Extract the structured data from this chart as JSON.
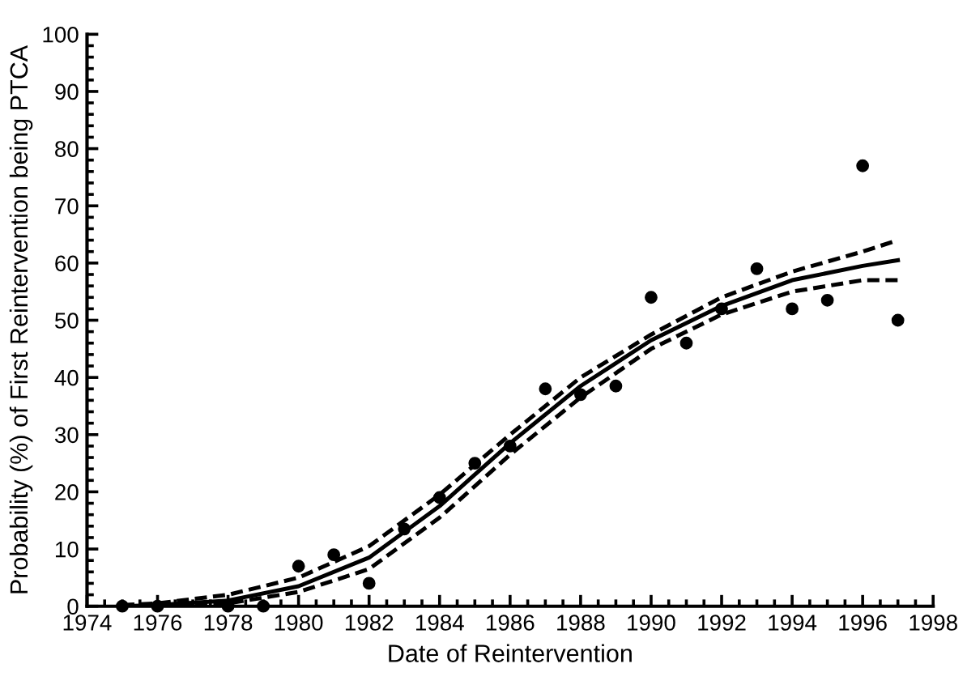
{
  "chart_data": {
    "type": "scatter",
    "xlabel": "Date of Reintervention",
    "ylabel": "Probability (%) of First Reintervention being PTCA",
    "xlim": [
      1974,
      1998
    ],
    "xticks": [
      1974,
      1976,
      1978,
      1980,
      1982,
      1984,
      1986,
      1988,
      1990,
      1992,
      1994,
      1996,
      1998
    ],
    "ylim": [
      0,
      100
    ],
    "yticks": [
      0,
      10,
      20,
      30,
      40,
      50,
      60,
      70,
      80,
      90,
      100
    ],
    "grid": false,
    "legend": false,
    "series": [
      {
        "color": "#000000",
        "marker": "circle",
        "x": [
          1975,
          1976,
          1978,
          1979,
          1980,
          1981,
          1982,
          1983,
          1984,
          1985,
          1986,
          1987,
          1988,
          1989,
          1990,
          1991,
          1992,
          1993,
          1994,
          1995,
          1996,
          1997
        ],
        "values": [
          0,
          0,
          0,
          0,
          7,
          9,
          4,
          13.5,
          19,
          25,
          28,
          38,
          37,
          38.5,
          54,
          46,
          52,
          59,
          52,
          53.5,
          77,
          50
        ]
      },
      {
        "type": "line",
        "color": "#000000",
        "line_style": "solid",
        "x": [
          1975,
          1976,
          1978,
          1980,
          1982,
          1984,
          1985,
          1986,
          1987,
          1988,
          1990,
          1992,
          1994,
          1996,
          1997
        ],
        "values": [
          0,
          0.2,
          1,
          3.5,
          8.5,
          17.5,
          23,
          28.5,
          33.5,
          38.5,
          46.5,
          52.5,
          57,
          59.5,
          60.5
        ]
      },
      {
        "type": "line",
        "color": "#000000",
        "line_style": "dashed",
        "x": [
          1975,
          1976,
          1978,
          1980,
          1982,
          1984,
          1986,
          1988,
          1990,
          1992,
          1994,
          1996,
          1997
        ],
        "values": [
          0.2,
          0.5,
          2,
          5,
          10.5,
          19.5,
          30,
          40,
          47.5,
          54,
          58.5,
          62,
          64
        ]
      },
      {
        "type": "line",
        "color": "#000000",
        "line_style": "dashed",
        "x": [
          1975,
          1976,
          1978,
          1980,
          1982,
          1984,
          1986,
          1988,
          1990,
          1992,
          1994,
          1996,
          1997
        ],
        "values": [
          0,
          0.1,
          0.5,
          2.5,
          6.5,
          15.5,
          26.5,
          36.5,
          45,
          51,
          55,
          57,
          57
        ]
      }
    ]
  }
}
